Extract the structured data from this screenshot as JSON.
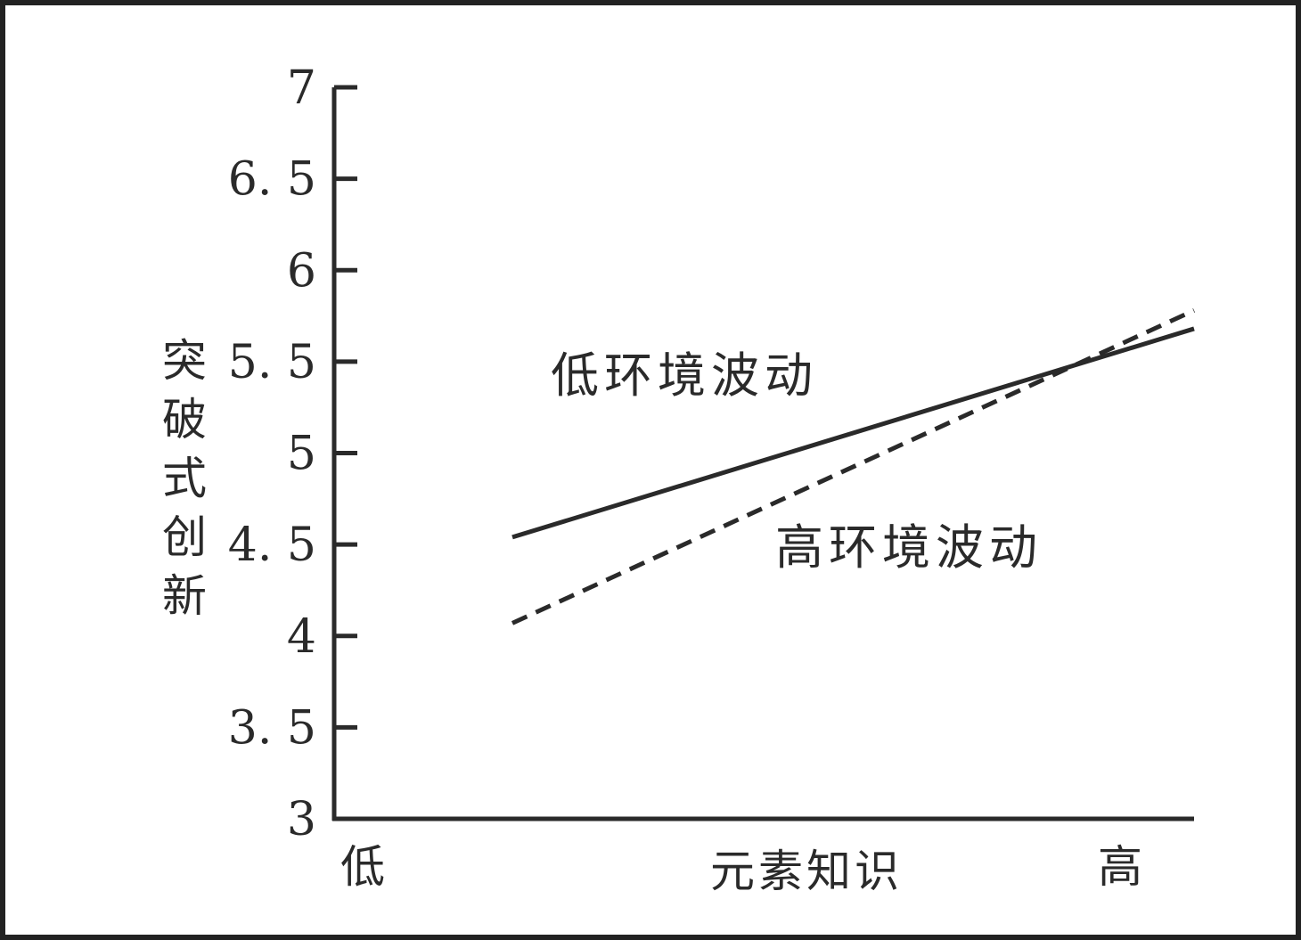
{
  "chart_data": {
    "type": "line",
    "title": "",
    "xlabel": "元素知识",
    "ylabel": "突破式创新",
    "x_tick_labels": {
      "low": "低",
      "high": "高"
    },
    "x": [
      0,
      1
    ],
    "ylim": [
      3,
      7
    ],
    "yticks": [
      3,
      3.5,
      4,
      4.5,
      5,
      5.5,
      6,
      6.5,
      7
    ],
    "ytick_labels": [
      "3",
      "3. 5",
      "4",
      "4. 5",
      "5",
      "5. 5",
      "6",
      "6. 5",
      "7"
    ],
    "grid": false,
    "series": [
      {
        "name": "低环境波动",
        "style": "solid",
        "color": "#2a2a2a",
        "values": [
          4.54,
          5.68
        ]
      },
      {
        "name": "高环境波动",
        "style": "dashed",
        "color": "#2a2a2a",
        "values": [
          4.07,
          5.78
        ]
      }
    ]
  }
}
